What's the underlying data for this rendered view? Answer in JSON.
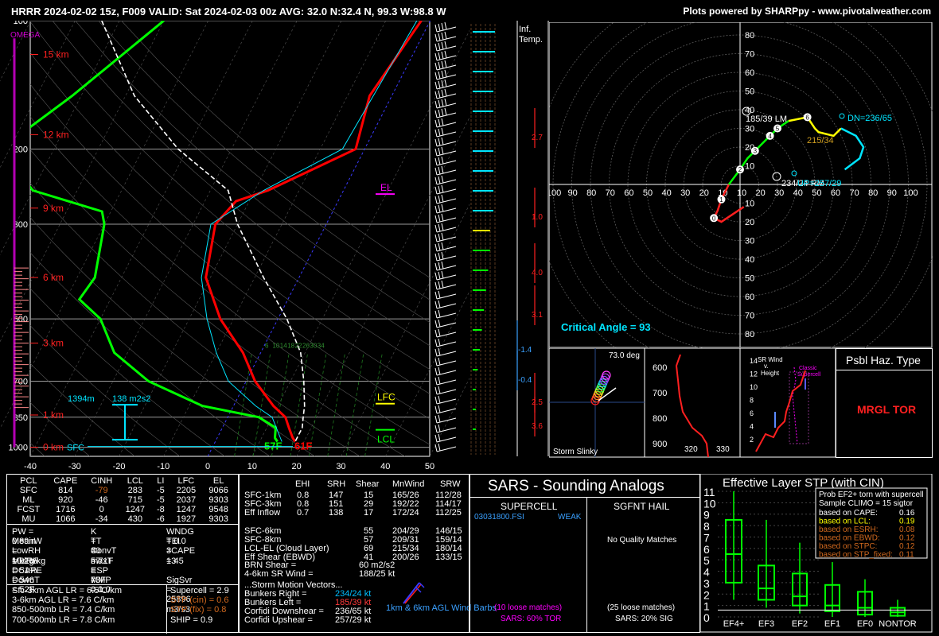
{
  "header": {
    "title": "HRRR 2024-02-02 15z, F009  VALID: Sat 2024-02-03 00z  AVG: 32.0 N:32.4 N, 99.3 W:98.8 W",
    "credit": "Plots powered by SHARPpy - www.pivotalweather.com"
  },
  "colors": {
    "temp": "#ff0000",
    "dewp": "#00ff00",
    "wetbulb": "#00e5ff",
    "parcel": "#ffffff",
    "accent_cyan": "#00e5ff",
    "accent_yellow": "#ffff00",
    "magenta": "#ff00ff"
  },
  "chart_data": [
    {
      "type": "line",
      "name": "skew-t",
      "x_ticks": [
        "-40",
        "-30",
        "-20",
        "-10",
        "0",
        "10",
        "20",
        "30",
        "40",
        "50"
      ],
      "p_ticks": [
        "100",
        "200",
        "300",
        "500",
        "700",
        "850",
        "1000"
      ],
      "height_labels": [
        "15 km",
        "12 km",
        "9 km",
        "6 km",
        "3 km",
        "1 km",
        "0 km"
      ],
      "omega_label": "OMEGA",
      "series": [
        {
          "role": "temperature",
          "points": [
            [
              100,
              -2
            ],
            [
              150,
              -5
            ],
            [
              200,
              -2
            ],
            [
              250,
              -17
            ],
            [
              265,
              -23
            ],
            [
              300,
              -25
            ],
            [
              400,
              -21
            ],
            [
              500,
              -13
            ],
            [
              600,
              -4
            ],
            [
              700,
              2
            ],
            [
              800,
              9
            ],
            [
              850,
              13
            ],
            [
              900,
              15
            ],
            [
              950,
              17
            ],
            [
              970,
              18
            ]
          ]
        },
        {
          "role": "dewpoint",
          "points": [
            [
              100,
              -60
            ],
            [
              150,
              -72
            ],
            [
              200,
              -82
            ],
            [
              250,
              -70
            ],
            [
              280,
              -52
            ],
            [
              300,
              -50
            ],
            [
              400,
              -46
            ],
            [
              450,
              -47
            ],
            [
              500,
              -40
            ],
            [
              600,
              -33
            ],
            [
              700,
              -22
            ],
            [
              800,
              -7
            ],
            [
              850,
              7
            ],
            [
              900,
              12
            ],
            [
              950,
              13
            ],
            [
              970,
              14
            ]
          ]
        },
        {
          "role": "parcel",
          "points": [
            [
              100,
              -74
            ],
            [
              150,
              -58
            ],
            [
              200,
              -42
            ],
            [
              250,
              -26
            ],
            [
              300,
              -20
            ],
            [
              400,
              -8
            ],
            [
              500,
              2
            ],
            [
              600,
              9
            ],
            [
              700,
              13
            ],
            [
              800,
              16
            ],
            [
              850,
              17
            ],
            [
              900,
              18
            ],
            [
              970,
              18
            ]
          ]
        },
        {
          "role": "wetbulb",
          "points": [
            [
              100,
              -3
            ],
            [
              200,
              -5
            ],
            [
              250,
              -18
            ],
            [
              300,
              -26
            ],
            [
              400,
              -22
            ],
            [
              500,
              -16
            ],
            [
              600,
              -10
            ],
            [
              700,
              -4
            ],
            [
              800,
              5
            ],
            [
              850,
              10
            ],
            [
              970,
              15
            ]
          ]
        }
      ],
      "annotations": {
        "el": "EL",
        "lfc": "LFC",
        "lcl": "LCL",
        "sfc": "SFC",
        "t_sfc": "61F",
        "td_sfc": "57F",
        "cap_height": "1394m",
        "cap_srh": "138 m2s2",
        "mix_ratio": [
          "6",
          "10",
          "14",
          "18",
          "22",
          "26",
          "30",
          "34"
        ]
      }
    },
    {
      "type": "line",
      "name": "hodograph",
      "x_ticks": [
        "100",
        "90",
        "80",
        "70",
        "60",
        "50",
        "40",
        "30",
        "20",
        "10",
        "10",
        "20",
        "30",
        "40",
        "50",
        "60",
        "70",
        "80",
        "90",
        "100"
      ],
      "y_ticks": [
        "80",
        "70",
        "60",
        "50",
        "40",
        "30",
        "20",
        "10",
        "10",
        "20",
        "30",
        "40",
        "50",
        "60",
        "70",
        "80"
      ],
      "labels": {
        "lm": "185/39 LM",
        "rm": "234/24 RM",
        "corfidi_dn": "DN=236/65",
        "corfidi_up": "UP=257/29",
        "mean_wind": "215/34",
        "critical_angle": "Critical Angle = 93"
      },
      "height_markers": [
        "0",
        "1",
        "2",
        "3",
        "4",
        "5",
        "6"
      ],
      "points_kt": [
        [
          2,
          -12
        ],
        [
          -10,
          -20
        ],
        [
          -14,
          -18
        ],
        [
          -12,
          -14
        ],
        [
          -10,
          -8
        ],
        [
          -6,
          0
        ],
        [
          0,
          8
        ],
        [
          4,
          14
        ],
        [
          8,
          18
        ],
        [
          12,
          22
        ],
        [
          16,
          26
        ],
        [
          20,
          30
        ],
        [
          26,
          34
        ],
        [
          36,
          36
        ],
        [
          40,
          30
        ],
        [
          42,
          28
        ],
        [
          50,
          26
        ],
        [
          54,
          30
        ],
        [
          62,
          26
        ],
        [
          66,
          20
        ],
        [
          64,
          14
        ],
        [
          56,
          8
        ]
      ]
    },
    {
      "type": "line",
      "name": "inferred-temp-advection",
      "title": "Inf. Temp.",
      "values": [
        "2.7",
        "1.0",
        "4.0",
        "3.1",
        "-1.4",
        "-0.4",
        "2.5",
        "3.6"
      ]
    },
    {
      "type": "table",
      "name": "storm-slinky",
      "label": "Storm Slinky",
      "angle": "73.0 deg"
    },
    {
      "type": "line",
      "name": "theta-e",
      "y_ticks": [
        "600",
        "700",
        "800",
        "900"
      ],
      "x_ticks": [
        "320",
        "330"
      ]
    },
    {
      "type": "line",
      "name": "sr-wind",
      "legend": [
        "SR Wind v. Height",
        "Classic Supercell"
      ],
      "y_ticks": [
        "14",
        "12",
        "10",
        "8",
        "6",
        "4",
        "2"
      ]
    },
    {
      "type": "bar",
      "name": "effective-stp",
      "title": "Effective Layer STP (with CIN)",
      "categories": [
        "EF4+",
        "EF3",
        "EF2",
        "EF1",
        "EF0",
        "NONTOR"
      ],
      "ylim": [
        0,
        11
      ],
      "y_ticks": [
        "0",
        "1",
        "2",
        "3",
        "4",
        "5",
        "6",
        "7",
        "8",
        "9",
        "10",
        "11"
      ],
      "boxes": [
        {
          "cat": "EF4+",
          "lo": 1.5,
          "q1": 3.0,
          "med": 5.5,
          "q3": 8.5,
          "hi": 11.0
        },
        {
          "cat": "EF3",
          "lo": 0.8,
          "q1": 1.5,
          "med": 2.5,
          "q3": 4.5,
          "hi": 8.5
        },
        {
          "cat": "EF2",
          "lo": 0.3,
          "q1": 1.0,
          "med": 1.8,
          "q3": 3.8,
          "hi": 6.5
        },
        {
          "cat": "EF1",
          "lo": 0.0,
          "q1": 0.5,
          "med": 1.0,
          "q3": 2.8,
          "hi": 4.8
        },
        {
          "cat": "EF0",
          "lo": 0.0,
          "q1": 0.2,
          "med": 0.8,
          "q3": 2.2,
          "hi": 3.3
        },
        {
          "cat": "NONTOR",
          "lo": 0.0,
          "q1": 0.1,
          "med": 0.4,
          "q3": 0.8,
          "hi": 1.5
        }
      ],
      "prob_box": {
        "title": "Prob EF2+ torn with supercell",
        "subtitle": "Sample CLIMO = 15 sigtor",
        "rows": [
          [
            "based on CAPE:",
            "0.16"
          ],
          [
            "based on LCL:",
            "0.19"
          ],
          [
            "based on ESRH:",
            "0.08"
          ],
          [
            "based on EBWD:",
            "0.12"
          ],
          [
            "based on STPC:",
            "0.12"
          ],
          [
            "based on STP_fixed:",
            "0.11"
          ]
        ]
      }
    }
  ],
  "thermo": {
    "headers": [
      "PCL",
      "CAPE",
      "CINH",
      "LCL",
      "LI",
      "LFC",
      "EL"
    ],
    "rows": [
      [
        "SFC",
        "814",
        "-79",
        "283",
        "-5",
        "2205",
        "9066"
      ],
      [
        "ML",
        "920",
        "-46",
        "715",
        "-5",
        "2037",
        "9303"
      ],
      [
        "FCST",
        "1716",
        "0",
        "1247",
        "-8",
        "1247",
        "9548"
      ],
      [
        "MU",
        "1066",
        "-34",
        "430",
        "-6",
        "1927",
        "9303"
      ]
    ],
    "indices": [
      [
        "PW = 0.89in",
        "K = 30",
        "WNDG = 0.0"
      ],
      [
        "MeanW = 10.2g/kg",
        "TT = 57",
        "TEI = 13"
      ],
      [
        "LowRH = 91%",
        "ConvT = 71F",
        "3CAPE = 45"
      ],
      [
        "MidRH = 51%",
        "maxT = 73F",
        ""
      ],
      [
        "DCAPE = 546",
        "ESP = 0.0",
        ""
      ],
      [
        "DownT = 52F",
        "MMP = 1.0",
        "SigSvr = 25896 m3/s3"
      ]
    ],
    "lapse": [
      "Sfc-3km AGL LR = 6.5 C/km",
      "3-6km AGL LR = 7.6 C/km",
      "850-500mb LR = 7.4 C/km",
      "700-500mb LR = 7.8 C/km"
    ],
    "composite": [
      [
        "Supercell = 2.9",
        "#ffffff"
      ],
      [
        "STP (cin) = 0.6",
        "#d2691e"
      ],
      [
        "STP (fix) = 0.8",
        "#d2691e"
      ],
      [
        "SHIP = 0.9",
        "#ffffff"
      ]
    ]
  },
  "kinematics": {
    "headers": [
      "EHI",
      "SRH",
      "Shear",
      "MnWind",
      "SRW"
    ],
    "rows": [
      [
        "SFC-1km",
        "0.8",
        "147",
        "15",
        "165/26",
        "112/28"
      ],
      [
        "SFC-3km",
        "0.8",
        "151",
        "29",
        "192/22",
        "114/17"
      ],
      [
        "Eff Inflow",
        "0.7",
        "138",
        "17",
        "172/24",
        "112/25"
      ],
      [
        "",
        "",
        "",
        "",
        "",
        ""
      ],
      [
        "SFC-6km",
        "",
        "",
        "55",
        "204/29",
        "146/15"
      ],
      [
        "SFC-8km",
        "",
        "",
        "57",
        "209/31",
        "159/14"
      ],
      [
        "LCL-EL (Cloud Layer)",
        "",
        "",
        "69",
        "215/34",
        "180/14"
      ],
      [
        "Eff Shear (EBWD)",
        "",
        "",
        "41",
        "200/26",
        "133/15"
      ]
    ],
    "brn": [
      "BRN Shear =",
      "60 m2/s2"
    ],
    "srwind": [
      "4-6km SR Wind =",
      "188/25 kt"
    ],
    "vectors_title": "...Storm Motion Vectors...",
    "vectors": [
      [
        "Bunkers Right =",
        "234/24 kt",
        "#00bfff"
      ],
      [
        "Bunkers Left =",
        "185/39 kt",
        "#ff3b3b"
      ],
      [
        "Corfidi Downshear =",
        "236/65 kt",
        "#ffffff"
      ],
      [
        "Corfidi Upshear =",
        "257/29 kt",
        "#ffffff"
      ]
    ],
    "barbs_label": "1km & 6km AGL Wind Barbs"
  },
  "sars": {
    "title": "SARS - Sounding Analogs",
    "supercell_title": "SUPERCELL",
    "hail_title": "SGFNT HAIL",
    "match_file": "03031800.FSI",
    "match_tag": "WEAK",
    "hail_msg": "No Quality Matches",
    "sc_loose": "(10 loose matches)",
    "sc_pct": "SARS: 60% TOR",
    "hail_loose": "(25 loose matches)",
    "hail_pct": "SARS: 20% SIG"
  },
  "haz": {
    "title": "Psbl Haz. Type",
    "value": "MRGL TOR"
  }
}
